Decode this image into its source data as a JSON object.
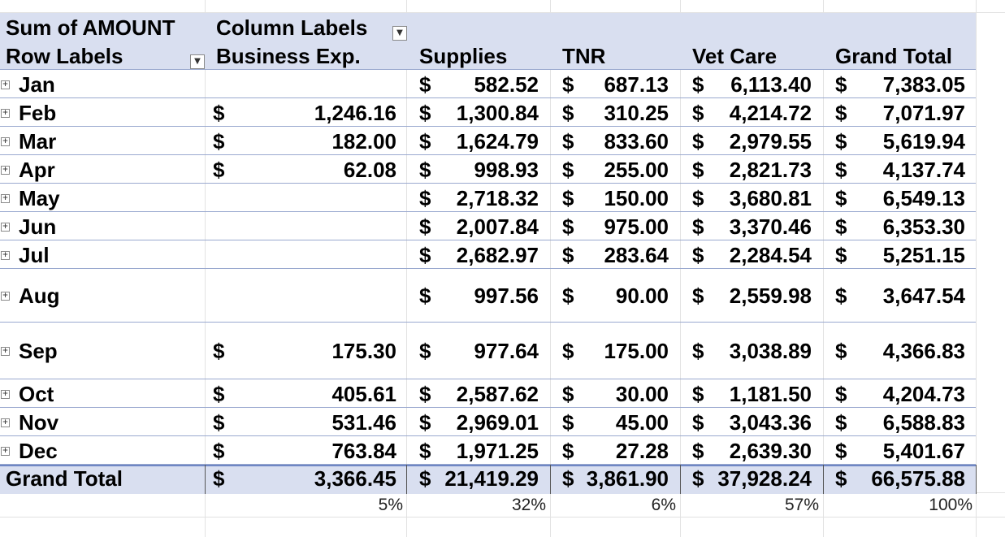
{
  "header": {
    "title": "Sum of AMOUNT",
    "column_labels": "Column Labels",
    "row_labels": "Row Labels",
    "columns": [
      "Business Exp.",
      "Supplies",
      "TNR",
      "Vet Care",
      "Grand Total"
    ]
  },
  "currency_symbol": "$",
  "rows": [
    {
      "label": "Jan",
      "business": "",
      "supplies": "582.52",
      "tnr": "687.13",
      "vet": "6,113.40",
      "total": "7,383.05"
    },
    {
      "label": "Feb",
      "business": "1,246.16",
      "supplies": "1,300.84",
      "tnr": "310.25",
      "vet": "4,214.72",
      "total": "7,071.97"
    },
    {
      "label": "Mar",
      "business": "182.00",
      "supplies": "1,624.79",
      "tnr": "833.60",
      "vet": "2,979.55",
      "total": "5,619.94"
    },
    {
      "label": "Apr",
      "business": "62.08",
      "supplies": "998.93",
      "tnr": "255.00",
      "vet": "2,821.73",
      "total": "4,137.74"
    },
    {
      "label": "May",
      "business": "",
      "supplies": "2,718.32",
      "tnr": "150.00",
      "vet": "3,680.81",
      "total": "6,549.13"
    },
    {
      "label": "Jun",
      "business": "",
      "supplies": "2,007.84",
      "tnr": "975.00",
      "vet": "3,370.46",
      "total": "6,353.30"
    },
    {
      "label": "Jul",
      "business": "",
      "supplies": "2,682.97",
      "tnr": "283.64",
      "vet": "2,284.54",
      "total": "5,251.15"
    },
    {
      "label": "Aug",
      "business": "",
      "supplies": "997.56",
      "tnr": "90.00",
      "vet": "2,559.98",
      "total": "3,647.54"
    },
    {
      "label": "Sep",
      "business": "175.30",
      "supplies": "977.64",
      "tnr": "175.00",
      "vet": "3,038.89",
      "total": "4,366.83"
    },
    {
      "label": "Oct",
      "business": "405.61",
      "supplies": "2,587.62",
      "tnr": "30.00",
      "vet": "1,181.50",
      "total": "4,204.73"
    },
    {
      "label": "Nov",
      "business": "531.46",
      "supplies": "2,969.01",
      "tnr": "45.00",
      "vet": "3,043.36",
      "total": "6,588.83"
    },
    {
      "label": "Dec",
      "business": "763.84",
      "supplies": "1,971.25",
      "tnr": "27.28",
      "vet": "2,639.30",
      "total": "5,401.67"
    }
  ],
  "grand_total": {
    "label": "Grand Total",
    "business": "3,366.45",
    "supplies": "21,419.29",
    "tnr": "3,861.90",
    "vet": "37,928.24",
    "total": "66,575.88"
  },
  "percentages": [
    "5%",
    "32%",
    "6%",
    "57%",
    "100%"
  ]
}
